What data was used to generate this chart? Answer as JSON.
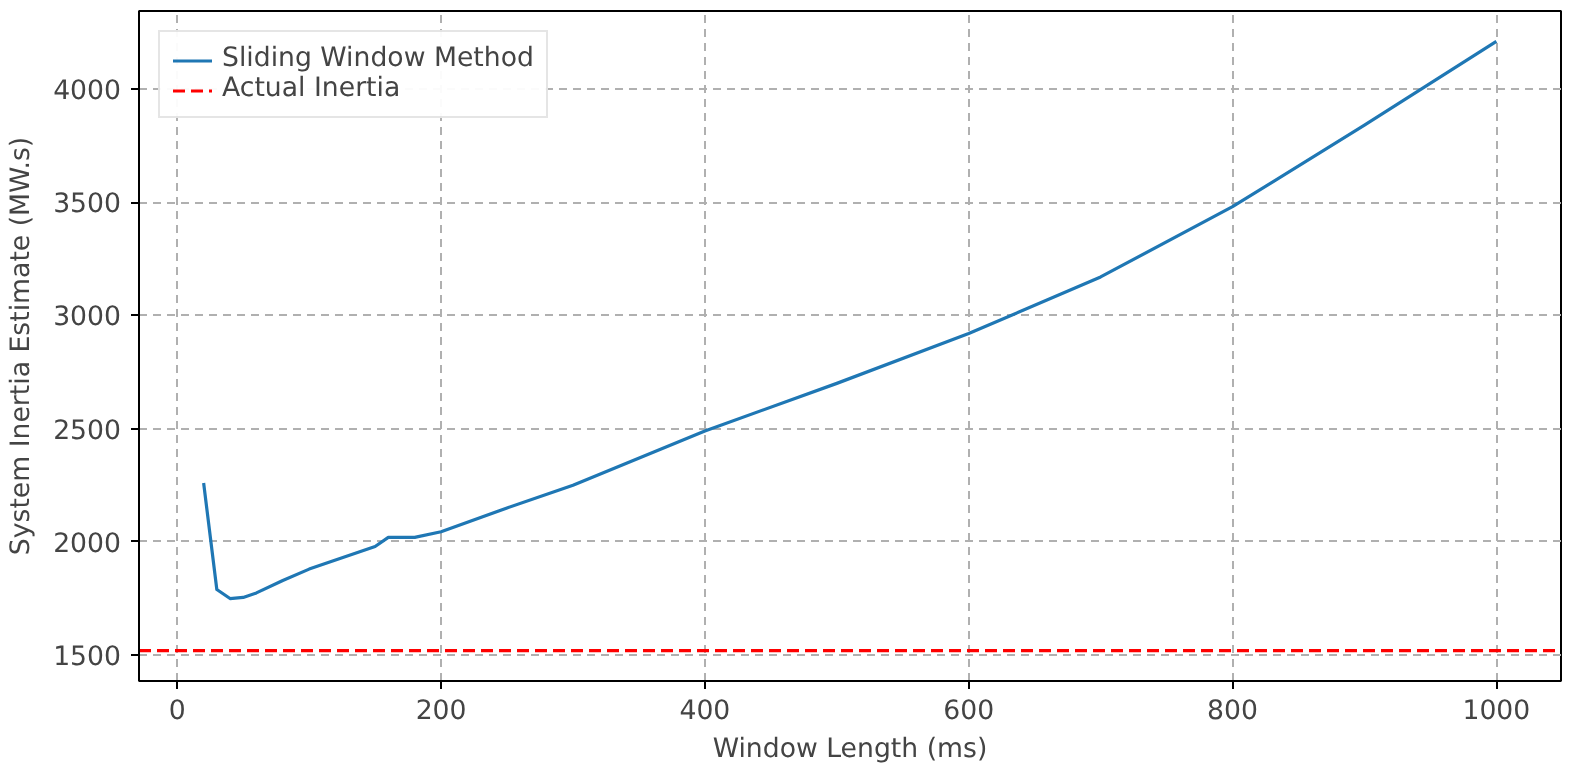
{
  "chart_data": {
    "type": "line",
    "xlabel": "Window Length (ms)",
    "ylabel": "System Inertia Estimate (MW.s)",
    "x": [
      20,
      30,
      40,
      50,
      60,
      80,
      100,
      150,
      160,
      180,
      200,
      250,
      300,
      400,
      500,
      600,
      700,
      800,
      900,
      1000
    ],
    "series": [
      {
        "name": "Sliding Window Method",
        "color": "#1f77b4",
        "values": [
          2260,
          1790,
          1750,
          1755,
          1775,
          1830,
          1880,
          1980,
          2020,
          2020,
          2045,
          2150,
          2250,
          2490,
          2700,
          2920,
          3170,
          3480,
          3840,
          4210
        ]
      }
    ],
    "ref_lines": [
      {
        "axis": "y",
        "value": 1520,
        "label": "Actual Inertia",
        "color": "#ff0000",
        "line_style": "dashed"
      }
    ],
    "xlim": [
      -29,
      1049
    ],
    "ylim": [
      1386,
      4344
    ],
    "xticks": [
      0,
      200,
      400,
      600,
      800,
      1000
    ],
    "yticks": [
      1500,
      2000,
      2500,
      3000,
      3500,
      4000
    ],
    "grid": true,
    "legend": "top left",
    "line_style": "solid",
    "marker": "none"
  }
}
